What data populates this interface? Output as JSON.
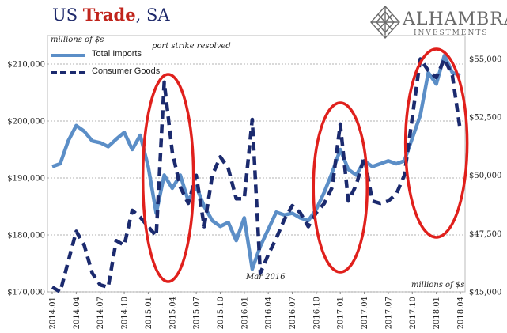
{
  "header": {
    "title_part1": "US ",
    "title_part2": "Trade",
    "title_part3": ", SA"
  },
  "logo": {
    "name": "ALHAMBRA",
    "subtitle": "INVESTMENTS",
    "icon": "diamond-lattice-icon"
  },
  "chart_data": {
    "type": "line",
    "ylabel": "millions of $s",
    "y2label": "millions of $s",
    "x": [
      "2014.01",
      "2014.02",
      "2014.03",
      "2014.04",
      "2014.05",
      "2014.06",
      "2014.07",
      "2014.08",
      "2014.09",
      "2014.10",
      "2014.11",
      "2014.12",
      "2015.01",
      "2015.02",
      "2015.03",
      "2015.04",
      "2015.05",
      "2015.06",
      "2015.07",
      "2015.08",
      "2015.09",
      "2015.10",
      "2015.11",
      "2015.12",
      "2016.01",
      "2016.02",
      "2016.03",
      "2016.04",
      "2016.05",
      "2016.06",
      "2016.07",
      "2016.08",
      "2016.09",
      "2016.10",
      "2016.11",
      "2016.12",
      "2017.01",
      "2017.02",
      "2017.03",
      "2017.04",
      "2017.05",
      "2017.06",
      "2017.07",
      "2017.08",
      "2017.09",
      "2017.10",
      "2017.11",
      "2017.12",
      "2018.01",
      "2018.02",
      "2018.03",
      "2018.04"
    ],
    "x_tick_labels": [
      "2014.01",
      "2014.04",
      "2014.07",
      "2014.10",
      "2015.01",
      "2015.04",
      "2015.07",
      "2015.10",
      "2016.01",
      "2016.04",
      "2016.07",
      "2016.10",
      "2017.01",
      "2017.04",
      "2017.07",
      "2017.10",
      "2018.01",
      "2018.04"
    ],
    "series": [
      {
        "name": "Total Imports",
        "axis": "left",
        "color": "#5b8ec7",
        "style": "solid",
        "values": [
          192000,
          192500,
          196500,
          199200,
          198200,
          196500,
          196200,
          195500,
          196800,
          198000,
          195000,
          197500,
          192000,
          183800,
          190500,
          188200,
          190500,
          186000,
          188500,
          185000,
          182500,
          181500,
          182200,
          179000,
          183000,
          174000,
          178000,
          181000,
          184000,
          183500,
          183800,
          183000,
          182500,
          184500,
          187500,
          191000,
          195000,
          191500,
          190500,
          193000,
          192000,
          192500,
          193000,
          192500,
          193000,
          197000,
          201000,
          208500,
          206500,
          211500,
          208500,
          208000
        ]
      },
      {
        "name": "Consumer Goods",
        "axis": "right",
        "color": "#1b2a6e",
        "style": "dashed",
        "values": [
          45200,
          45000,
          46300,
          47600,
          47000,
          45800,
          45300,
          45200,
          47200,
          47000,
          48500,
          48200,
          47800,
          47400,
          54000,
          51000,
          49500,
          48800,
          50000,
          47800,
          50000,
          50800,
          50300,
          49000,
          49000,
          52400,
          45800,
          46600,
          47300,
          48100,
          48700,
          48400,
          47800,
          48400,
          48800,
          49500,
          52200,
          48900,
          49600,
          50800,
          48900,
          48800,
          48900,
          49200,
          50000,
          52500,
          55000,
          54500,
          54200,
          55000,
          54300,
          51900
        ]
      }
    ],
    "yleft": {
      "min": 170000,
      "max": 215000,
      "ticks": [
        170000,
        180000,
        190000,
        200000,
        210000
      ],
      "tick_labels": [
        "$170,000",
        "$180,000",
        "$190,000",
        "$200,000",
        "$210,000"
      ]
    },
    "yright": {
      "min": 45000,
      "max": 56000,
      "ticks": [
        45000,
        47500,
        50000,
        52500,
        55000
      ],
      "tick_labels": [
        "$45,000",
        "$47,500",
        "$50,000",
        "$52,500",
        "$55,000"
      ]
    },
    "grid": true,
    "legend_placement": "top-left",
    "annotations": {
      "port_strike": "port strike resolved",
      "mar2016": "Mar 2016"
    },
    "highlight_ellipses": [
      "2015.03",
      "2017.01",
      "2018.01"
    ],
    "highlight_color": "#e0201c"
  }
}
